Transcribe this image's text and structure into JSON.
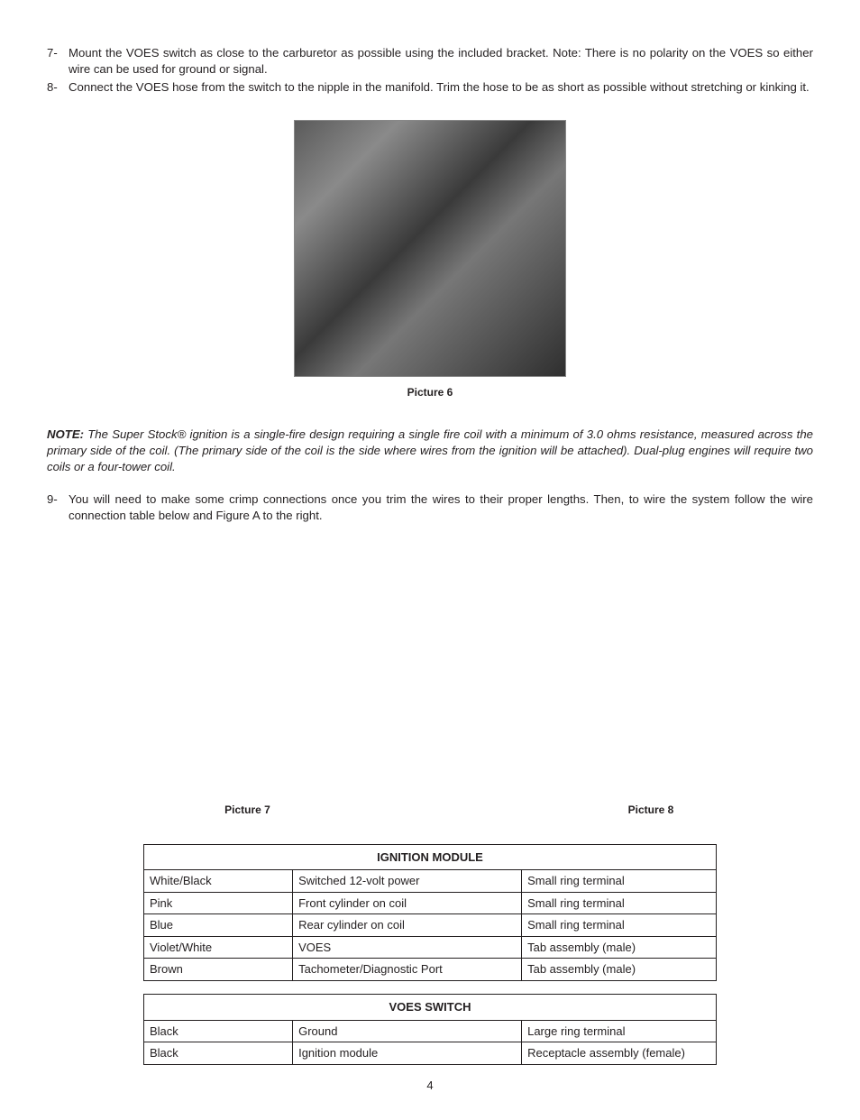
{
  "steps_a": [
    {
      "num": "7-",
      "text": "Mount the VOES switch as close to the carburetor as possible using the included bracket. Note: There is no polarity on the VOES so either wire can be used for ground or signal."
    },
    {
      "num": "8-",
      "text": "Connect the VOES hose from the switch to the nipple in the manifold. Trim the hose to be as short as possible without stretching or kinking it."
    }
  ],
  "figure6_caption": "Picture 6",
  "note_label": "NOTE:",
  "note_text": " The Super Stock® ignition is a single-fire design requiring a single fire coil with a minimum of 3.0 ohms resistance, measured across the primary side of the coil. (The primary side of the coil is the side where wires from the ignition will be attached). Dual-plug engines will require two coils or a four-tower coil.",
  "steps_b": [
    {
      "num": "9-",
      "text": "You will need to make some crimp connections once you trim the wires to their proper lengths. Then, to wire the system follow the wire connection table below and Figure A to the right."
    }
  ],
  "figure7_caption": "Picture 7",
  "figure8_caption": "Picture 8",
  "tables": {
    "ignition": {
      "title": "IGNITION MODULE",
      "rows": [
        [
          "White/Black",
          "Switched 12-volt power",
          "Small ring terminal"
        ],
        [
          "Pink",
          "Front cylinder on coil",
          "Small ring terminal"
        ],
        [
          "Blue",
          "Rear cylinder on coil",
          "Small ring terminal"
        ],
        [
          "Violet/White",
          "VOES",
          "Tab assembly (male)"
        ],
        [
          "Brown",
          "Tachometer/Diagnostic Port",
          "Tab assembly (male)"
        ]
      ],
      "col_widths": [
        "26%",
        "40%",
        "34%"
      ]
    },
    "voes": {
      "title": "VOES SWITCH",
      "rows": [
        [
          "Black",
          "Ground",
          "Large ring terminal"
        ],
        [
          "Black",
          "Ignition module",
          "Receptacle assembly (female)"
        ]
      ],
      "col_widths": [
        "26%",
        "40%",
        "34%"
      ]
    }
  },
  "page_number": "4"
}
